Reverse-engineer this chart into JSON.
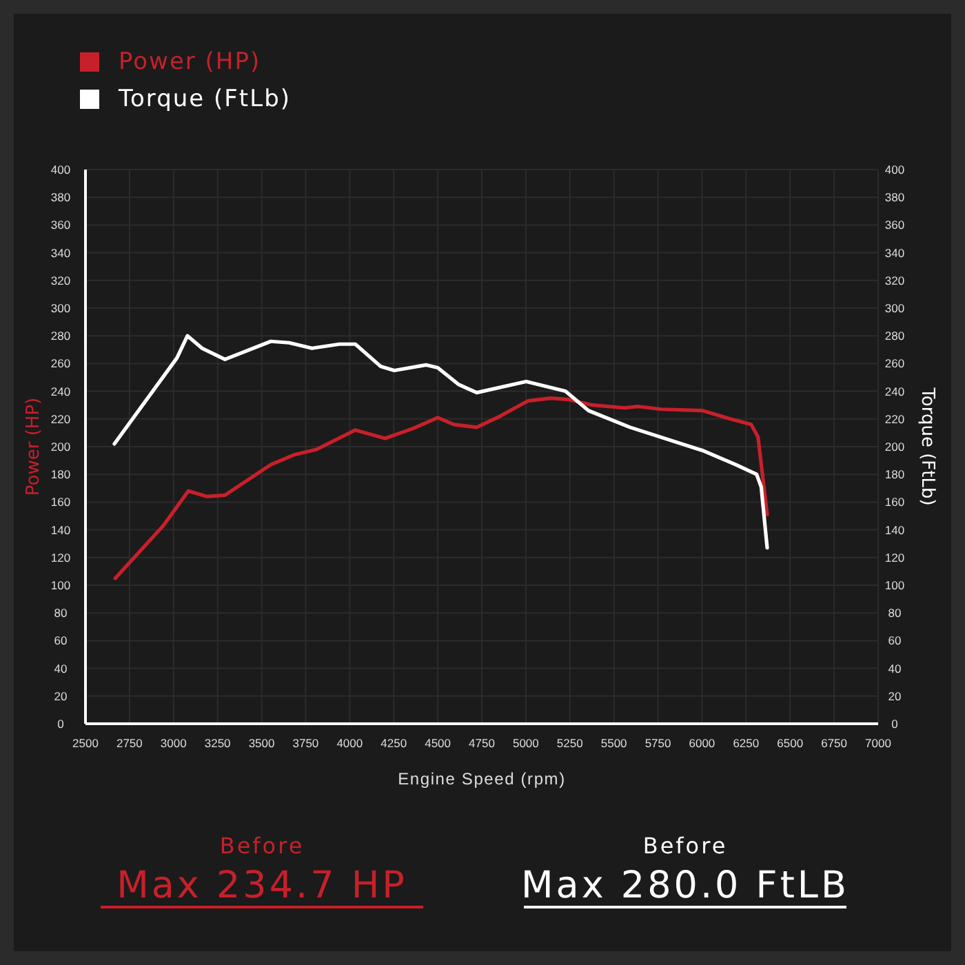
{
  "chart_data": {
    "type": "line",
    "xlabel": "Engine Speed (rpm)",
    "ylabel": "Power (HP)",
    "y2label": "Torque (FtLb)",
    "xlim": [
      2500,
      7000
    ],
    "xticks": [
      2500,
      2750,
      3000,
      3250,
      3500,
      3750,
      4000,
      4250,
      4500,
      4750,
      5000,
      5250,
      5500,
      5750,
      6000,
      6250,
      6500,
      6750,
      7000
    ],
    "ylim": [
      0,
      400
    ],
    "yticks": [
      0,
      20,
      40,
      60,
      80,
      100,
      120,
      140,
      160,
      180,
      200,
      220,
      240,
      260,
      280,
      300,
      320,
      340,
      360,
      380,
      400
    ],
    "y2lim": [
      0,
      400
    ],
    "y2ticks": [
      0,
      20,
      40,
      60,
      80,
      100,
      120,
      140,
      160,
      180,
      200,
      220,
      240,
      260,
      280,
      300,
      320,
      340,
      360,
      380,
      400
    ],
    "grid": true,
    "legend": "top left",
    "marker": "none",
    "line_style": "solid",
    "series": [
      {
        "name": "Power (HP)",
        "color": "#c8202a",
        "x": [
          2669,
          2942,
          3084,
          3188,
          3292,
          3552,
          3682,
          3812,
          4032,
          4201,
          4357,
          4500,
          4591,
          4721,
          4854,
          5011,
          5141,
          5246,
          5377,
          5560,
          5638,
          5769,
          6004,
          6161,
          6279,
          6318,
          6370
        ],
        "values": [
          105,
          143,
          168,
          164,
          165,
          187,
          194,
          198,
          212,
          206,
          213,
          221,
          216,
          214,
          222,
          233,
          235,
          234,
          230,
          228,
          229,
          227,
          226,
          220,
          216,
          207,
          151
        ]
      },
      {
        "name": "Torque (FtLb)",
        "color": "#ffffff",
        "axis": "y2",
        "x": [
          2664,
          3019,
          3079,
          3162,
          3292,
          3552,
          3656,
          3786,
          3942,
          4032,
          4175,
          4253,
          4435,
          4500,
          4617,
          4721,
          5002,
          5225,
          5356,
          5591,
          6009,
          6192,
          6310,
          6336,
          6370
        ],
        "values": [
          202,
          264,
          280,
          271,
          263,
          276,
          275,
          271,
          274,
          274,
          258,
          255,
          259,
          257,
          245,
          239,
          247,
          240,
          226,
          214,
          197,
          187,
          180,
          171,
          127
        ]
      }
    ],
    "annotations": [
      "Before",
      "Max 234.7 HP",
      "Before",
      "Max 280.0 FtLB"
    ]
  }
}
